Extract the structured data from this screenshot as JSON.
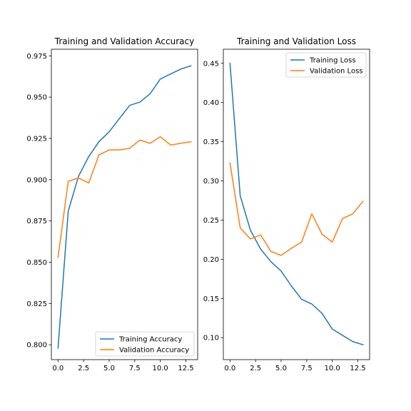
{
  "chart_data": [
    {
      "type": "line",
      "title": "Training and Validation Accuracy",
      "xlim": [
        -0.65,
        13.65
      ],
      "ylim": [
        0.791,
        0.979
      ],
      "xticks": [
        0.0,
        2.5,
        5.0,
        7.5,
        10.0,
        12.5
      ],
      "xtick_labels": [
        "0.0",
        "2.5",
        "5.0",
        "7.5",
        "10.0",
        "12.5"
      ],
      "yticks": [
        0.8,
        0.825,
        0.85,
        0.875,
        0.9,
        0.925,
        0.95,
        0.975
      ],
      "ytick_labels": [
        "0.800",
        "0.825",
        "0.850",
        "0.875",
        "0.900",
        "0.925",
        "0.950",
        "0.975"
      ],
      "grid": false,
      "legend_position": "lower-right",
      "x": [
        0,
        1,
        2,
        3,
        4,
        5,
        6,
        7,
        8,
        9,
        10,
        11,
        12,
        13
      ],
      "series": [
        {
          "name": "Training Accuracy",
          "color": "#1f77b4",
          "values": [
            0.798,
            0.881,
            0.902,
            0.914,
            0.923,
            0.929,
            0.937,
            0.945,
            0.947,
            0.952,
            0.961,
            0.964,
            0.967,
            0.969
          ]
        },
        {
          "name": "Validation Accuracy",
          "color": "#ff7f0e",
          "values": [
            0.853,
            0.899,
            0.901,
            0.898,
            0.915,
            0.918,
            0.918,
            0.919,
            0.924,
            0.922,
            0.926,
            0.921,
            0.922,
            0.923
          ]
        }
      ]
    },
    {
      "type": "line",
      "title": "Training and Validation Loss",
      "xlim": [
        -0.65,
        13.65
      ],
      "ylim": [
        0.072,
        0.468
      ],
      "xticks": [
        0.0,
        2.5,
        5.0,
        7.5,
        10.0,
        12.5
      ],
      "xtick_labels": [
        "0.0",
        "2.5",
        "5.0",
        "7.5",
        "10.0",
        "12.5"
      ],
      "yticks": [
        0.1,
        0.15,
        0.2,
        0.25,
        0.3,
        0.35,
        0.4,
        0.45
      ],
      "ytick_labels": [
        "0.10",
        "0.15",
        "0.20",
        "0.25",
        "0.30",
        "0.35",
        "0.40",
        "0.45"
      ],
      "grid": false,
      "legend_position": "upper-right",
      "x": [
        0,
        1,
        2,
        3,
        4,
        5,
        6,
        7,
        8,
        9,
        10,
        11,
        12,
        13
      ],
      "series": [
        {
          "name": "Training Loss",
          "color": "#1f77b4",
          "values": [
            0.45,
            0.281,
            0.237,
            0.213,
            0.197,
            0.185,
            0.166,
            0.149,
            0.143,
            0.131,
            0.111,
            0.103,
            0.095,
            0.091
          ]
        },
        {
          "name": "Validation Loss",
          "color": "#ff7f0e",
          "values": [
            0.323,
            0.24,
            0.226,
            0.231,
            0.21,
            0.205,
            0.214,
            0.222,
            0.258,
            0.232,
            0.222,
            0.252,
            0.258,
            0.274
          ]
        }
      ]
    }
  ]
}
